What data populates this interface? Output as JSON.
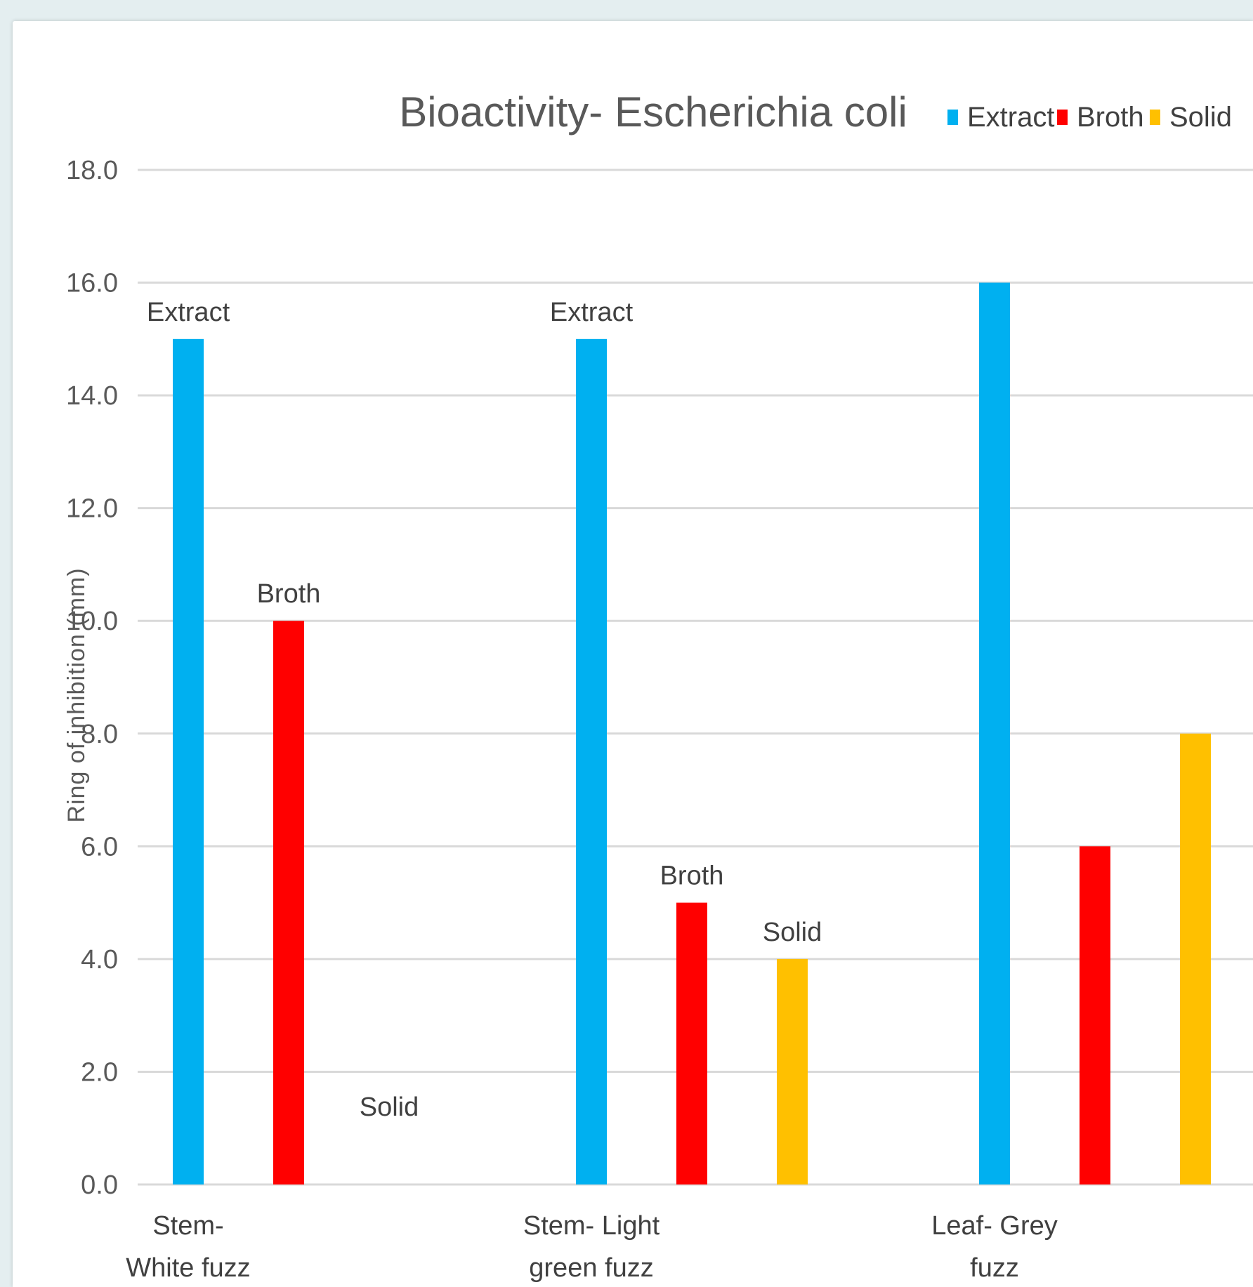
{
  "chart_data": {
    "type": "bar",
    "title": "Bioactivity- Escherichia coli",
    "xlabel": "",
    "ylabel": "Ring of inhibition (mm)",
    "ylim": [
      0,
      18
    ],
    "yticks": [
      "0.0",
      "2.0",
      "4.0",
      "6.0",
      "8.0",
      "10.0",
      "12.0",
      "14.0",
      "16.0",
      "18.0"
    ],
    "grid": true,
    "legend_position": "top-right",
    "categories": [
      [
        "Stem-",
        "White fuzz"
      ],
      [
        "Stem- Light",
        "green fuzz"
      ],
      [
        "Leaf- Grey",
        "fuzz"
      ]
    ],
    "series": [
      {
        "name": "Extract",
        "color": "#00b0f0",
        "values": [
          15,
          15,
          16
        ],
        "labels": [
          "Extract",
          "Extract",
          ""
        ]
      },
      {
        "name": "Broth",
        "color": "#ff0000",
        "values": [
          10,
          5,
          6
        ],
        "labels": [
          "Broth",
          "Broth",
          ""
        ]
      },
      {
        "name": "Solid",
        "color": "#ffc000",
        "values": [
          0,
          4,
          8
        ],
        "labels": [
          "Solid",
          "Solid",
          ""
        ]
      }
    ]
  }
}
